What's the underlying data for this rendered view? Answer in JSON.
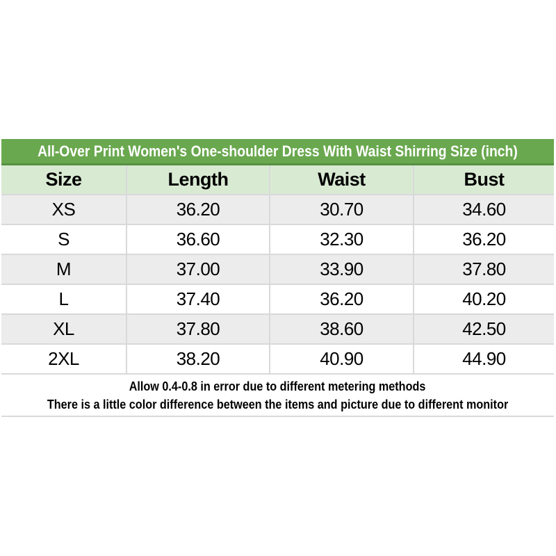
{
  "title": "All-Over Print Women's One-shoulder Dress With Waist Shirring Size (inch)",
  "table": {
    "headers": [
      "Size",
      "Length",
      "Waist",
      "Bust"
    ],
    "rows": [
      {
        "size": "XS",
        "length": "36.20",
        "waist": "30.70",
        "bust": "34.60"
      },
      {
        "size": "S",
        "length": "36.60",
        "waist": "32.30",
        "bust": "36.20"
      },
      {
        "size": "M",
        "length": "37.00",
        "waist": "33.90",
        "bust": "37.80"
      },
      {
        "size": "L",
        "length": "37.40",
        "waist": "36.20",
        "bust": "40.20"
      },
      {
        "size": "XL",
        "length": "37.80",
        "waist": "38.60",
        "bust": "42.50"
      },
      {
        "size": "2XL",
        "length": "38.20",
        "waist": "40.90",
        "bust": "44.90"
      }
    ]
  },
  "notes": [
    "Allow 0.4-0.8 in error due to different metering methods",
    "There is a little color difference between the items and picture due to different monitor"
  ],
  "colors": {
    "title_bar_green": "#6aa84f",
    "title_bar_border_green": "#559140",
    "header_row_light_green": "#d9ead3",
    "stripe_row_gray": "#ececec",
    "row_white": "#ffffff",
    "border_gray": "#d9d9d9",
    "title_text": "#ffffff",
    "body_text": "#000000"
  },
  "chart_data": {
    "type": "table",
    "title": "All-Over Print Women's One-shoulder Dress With Waist Shirring Size (inch)",
    "columns": [
      "Size",
      "Length",
      "Waist",
      "Bust"
    ],
    "rows": [
      [
        "XS",
        36.2,
        30.7,
        34.6
      ],
      [
        "S",
        36.6,
        32.3,
        36.2
      ],
      [
        "M",
        37.0,
        33.9,
        37.8
      ],
      [
        "L",
        37.4,
        36.2,
        40.2
      ],
      [
        "XL",
        37.8,
        38.6,
        42.5
      ],
      [
        "2XL",
        38.2,
        40.9,
        44.9
      ]
    ],
    "unit": "inch",
    "notes": [
      "Allow 0.4-0.8 in error due to different metering methods",
      "There is a little color difference between the items and picture due to different monitor"
    ]
  }
}
